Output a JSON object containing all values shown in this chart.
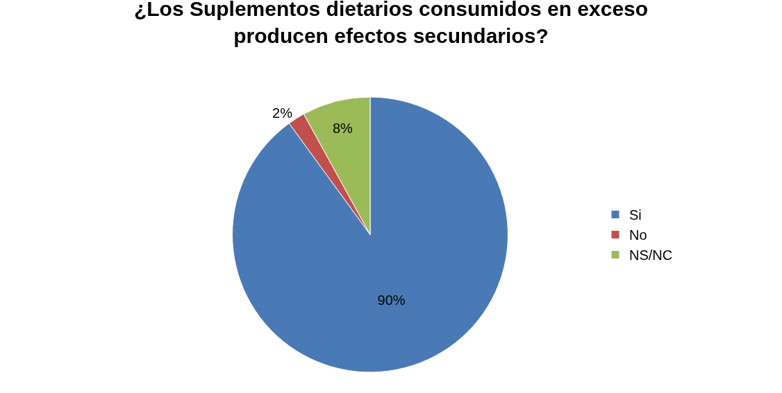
{
  "chart_data": {
    "type": "pie",
    "title": "¿Los Suplementos dietarios consumidos en exceso producen efectos secundarios?",
    "categories": [
      "Si",
      "No",
      "NS/NC"
    ],
    "values": [
      90,
      2,
      8
    ],
    "value_labels": [
      "90%",
      "2%",
      "8%"
    ],
    "colors": [
      "#4a7ab5",
      "#c0504d",
      "#9bbb59"
    ],
    "legend": "right"
  }
}
